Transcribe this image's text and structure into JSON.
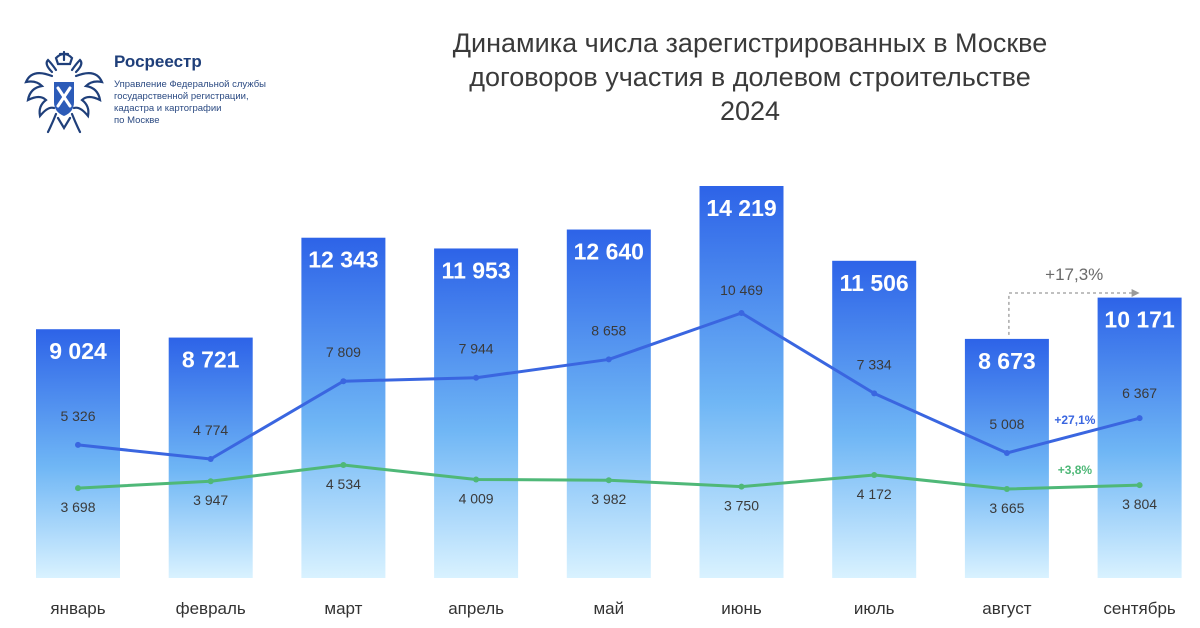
{
  "logo": {
    "name": "Росреестр",
    "subtitle_lines": [
      "Управление Федеральной службы",
      "государственной регистрации,",
      "кадастра и картографии",
      "по Москве"
    ]
  },
  "colors": {
    "bar_top": "#2d63e8",
    "bar_bottom": "#d9f2ff",
    "line_blue": "#3a66e0",
    "line_green": "#4fb878",
    "title": "#3a3a3a",
    "axis_text": "#333333",
    "emblem": "#1f3f7a"
  },
  "chart_data": {
    "type": "bar",
    "title_lines": [
      "Динамика числа зарегистрированных в Москве",
      "договоров участия в долевом строительстве",
      "2024"
    ],
    "categories": [
      "январь",
      "февраль",
      "март",
      "апрель",
      "май",
      "июнь",
      "июль",
      "август",
      "сентябрь"
    ],
    "value_labels": {
      "bars": [
        "9 024",
        "8 721",
        "12 343",
        "11 953",
        "12 640",
        "14 219",
        "11 506",
        "8 673",
        "10 171"
      ],
      "blue": [
        "5 326",
        "4 774",
        "7 809",
        "7 944",
        "8 658",
        "10 469",
        "7 334",
        "5 008",
        "6 367"
      ],
      "green": [
        "3 698",
        "3 947",
        "4 534",
        "4 009",
        "3 982",
        "3 750",
        "4 172",
        "3 665",
        "3 804"
      ]
    },
    "series": [
      {
        "kind": "bar",
        "values": [
          9024,
          8721,
          12343,
          11953,
          12640,
          14219,
          11506,
          8673,
          10171
        ]
      },
      {
        "kind": "line",
        "color": "#3a66e0",
        "values": [
          5326,
          4774,
          7809,
          7944,
          8658,
          10469,
          7334,
          5008,
          6367
        ]
      },
      {
        "kind": "line",
        "color": "#4fb878",
        "values": [
          3698,
          3947,
          4534,
          4009,
          3982,
          3750,
          4172,
          3665,
          3804
        ]
      }
    ],
    "annotations": {
      "bars_change": "+17,3%",
      "blue_change": "+27,1%",
      "green_change": "+3,8%"
    },
    "ylim": [
      0,
      14500
    ],
    "grid": false,
    "legend": "none"
  }
}
